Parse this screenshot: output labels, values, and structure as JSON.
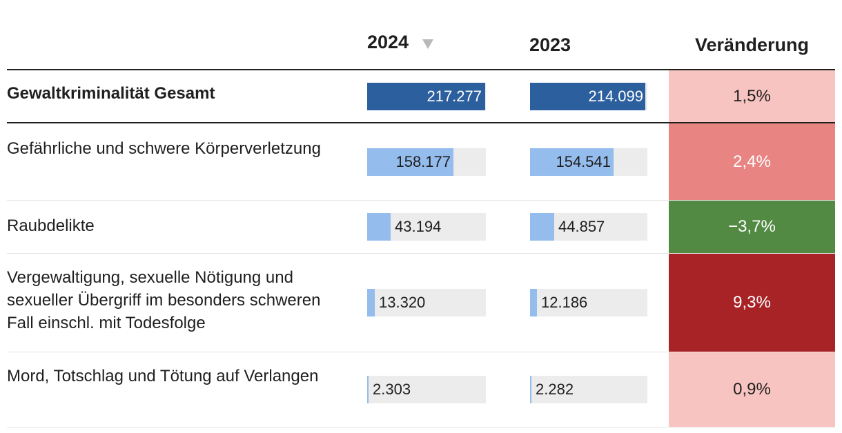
{
  "header": {
    "col_2024": "2024",
    "col_2023": "2023",
    "col_change": "Veränderung"
  },
  "chart_data": {
    "type": "table",
    "columns": [
      "2024",
      "2023",
      "Veränderung"
    ],
    "rows": [
      {
        "label": "Gewaltkriminalität Gesamt",
        "v2024": 217277,
        "v2024_text": "217.277",
        "v2023": 214099,
        "v2023_text": "214.099",
        "change": "1,5%",
        "change_color": "#f8c4c1",
        "change_text_color": "#1f1f1f",
        "total": true
      },
      {
        "label": "Gefährliche und schwere Körperverletzung",
        "v2024": 158177,
        "v2024_text": "158.177",
        "v2023": 154541,
        "v2023_text": "154.541",
        "change": "2,4%",
        "change_color": "#e88583",
        "change_text_color": "#ffffff",
        "total": false
      },
      {
        "label": "Raubdelikte",
        "v2024": 43194,
        "v2024_text": "43.194",
        "v2023": 44857,
        "v2023_text": "44.857",
        "change": "−3,7%",
        "change_color": "#528a44",
        "change_text_color": "#ffffff",
        "total": false
      },
      {
        "label": "Vergewaltigung, sexuelle Nötigung und sexueller Übergriff im besonders schweren Fall einschl. mit Todesfolge",
        "v2024": 13320,
        "v2024_text": "13.320",
        "v2023": 12186,
        "v2023_text": "12.186",
        "change": "9,3%",
        "change_color": "#a82326",
        "change_text_color": "#ffffff",
        "total": false
      },
      {
        "label": "Mord, Totschlag und Tötung auf Verlangen",
        "v2024": 2303,
        "v2024_text": "2.303",
        "v2023": 2282,
        "v2023_text": "2.282",
        "change": "0,9%",
        "change_color": "#f8c4c1",
        "change_text_color": "#1f1f1f",
        "total": false
      }
    ],
    "sorted_by": "2024",
    "sort_direction": "descending"
  }
}
